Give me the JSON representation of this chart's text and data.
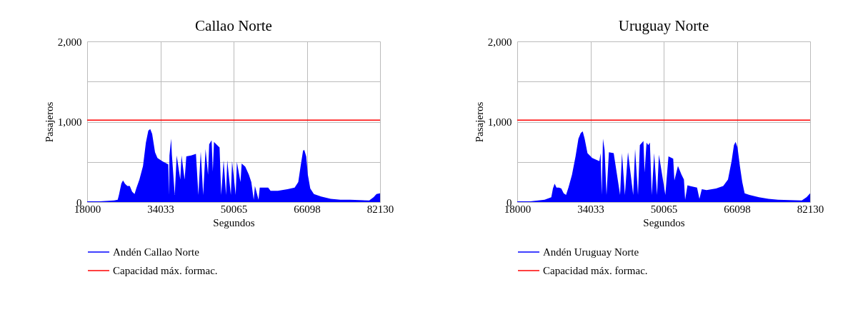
{
  "chart_data": [
    {
      "type": "area",
      "title": "Callao Norte",
      "xlabel": "Segundos",
      "ylabel": "Pasajeros",
      "xlim": [
        18000,
        82130
      ],
      "xticks": [
        18000,
        34033,
        50065,
        66098,
        82130
      ],
      "ylim": [
        0,
        2000
      ],
      "yticks": [
        0,
        {
          "value": 500,
          "label": null
        },
        {
          "value": 1000,
          "label": "1,000"
        },
        {
          "value": 1500,
          "label": null
        },
        {
          "value": 2000,
          "label": "2,000"
        }
      ],
      "grid": true,
      "legend": "bottom",
      "series": [
        {
          "name": "Andén Callao Norte",
          "color": "#0000ff",
          "x": [
            18000,
            20740,
            23900,
            24690,
            24960,
            25480,
            25850,
            26270,
            26800,
            27330,
            27850,
            28380,
            28750,
            29440,
            30230,
            30860,
            31390,
            31810,
            32230,
            32860,
            33390,
            34440,
            35760,
            35920,
            36020,
            36390,
            36550,
            37180,
            37600,
            38390,
            38660,
            39340,
            39710,
            40770,
            41820,
            42350,
            42870,
            43400,
            43930,
            44460,
            44720,
            45250,
            45510,
            45770,
            46460,
            46990,
            47350,
            47880,
            48410,
            48670,
            49460,
            49730,
            50520,
            50780,
            51570,
            51830,
            52620,
            53410,
            53940,
            54470,
            54730,
            55520,
            55790,
            57630,
            58160,
            59740,
            61850,
            63430,
            64220,
            64740,
            65270,
            65540,
            65960,
            66320,
            66850,
            67640,
            69220,
            71330,
            73440,
            75550,
            79760,
            80710,
            81350,
            82130
          ],
          "values": [
            10,
            10,
            20,
            30,
            90,
            230,
            270,
            230,
            200,
            200,
            130,
            100,
            170,
            280,
            450,
            740,
            890,
            910,
            850,
            620,
            550,
            510,
            470,
            90,
            580,
            790,
            590,
            90,
            580,
            280,
            580,
            280,
            570,
            580,
            600,
            90,
            630,
            90,
            660,
            340,
            720,
            770,
            380,
            750,
            710,
            680,
            90,
            520,
            90,
            520,
            90,
            510,
            90,
            500,
            250,
            480,
            440,
            340,
            250,
            30,
            200,
            30,
            180,
            180,
            140,
            140,
            160,
            180,
            250,
            450,
            640,
            650,
            570,
            340,
            170,
            100,
            70,
            40,
            30,
            30,
            20,
            60,
            100,
            110
          ]
        },
        {
          "name": "Capacidad máx. formac.",
          "type": "line",
          "color": "#ff0000",
          "x": [
            18000,
            82130
          ],
          "values": [
            1020,
            1020
          ]
        }
      ]
    },
    {
      "type": "area",
      "title": "Uruguay Norte",
      "xlabel": "Segundos",
      "ylabel": "Pasajeros",
      "xlim": [
        18000,
        82130
      ],
      "xticks": [
        18000,
        34033,
        50065,
        66098,
        82130
      ],
      "ylim": [
        0,
        2000
      ],
      "yticks": [
        0,
        {
          "value": 500,
          "label": null
        },
        {
          "value": 1000,
          "label": "1,000"
        },
        {
          "value": 1500,
          "label": null
        },
        {
          "value": 2000,
          "label": "2,000"
        }
      ],
      "grid": true,
      "legend": "bottom",
      "series": [
        {
          "name": "Andén Uruguay Norte",
          "color": "#0000ff",
          "x": [
            18000,
            20870,
            24000,
            25460,
            25820,
            26190,
            26600,
            27120,
            27650,
            28170,
            28690,
            29210,
            29990,
            30770,
            31400,
            31920,
            32340,
            32760,
            33380,
            34420,
            35990,
            36250,
            36510,
            36770,
            37130,
            37550,
            38070,
            39120,
            40520,
            40940,
            41570,
            42250,
            43390,
            43810,
            44440,
            44850,
            45630,
            45890,
            46310,
            46680,
            47040,
            47460,
            47980,
            48610,
            49020,
            50430,
            51110,
            52150,
            52410,
            53190,
            53980,
            54500,
            54760,
            55280,
            55800,
            57370,
            57890,
            58410,
            59450,
            61540,
            63100,
            64140,
            64930,
            65450,
            65810,
            66230,
            66750,
            67270,
            67790,
            68840,
            70920,
            73010,
            75090,
            80300,
            81340,
            82130
          ],
          "values": [
            10,
            10,
            30,
            60,
            170,
            230,
            180,
            180,
            170,
            110,
            90,
            180,
            340,
            570,
            790,
            860,
            880,
            790,
            610,
            550,
            510,
            610,
            90,
            790,
            650,
            90,
            620,
            610,
            90,
            610,
            90,
            620,
            90,
            660,
            90,
            710,
            760,
            370,
            740,
            710,
            740,
            90,
            610,
            90,
            590,
            90,
            570,
            540,
            270,
            450,
            340,
            280,
            30,
            210,
            200,
            180,
            40,
            160,
            150,
            170,
            200,
            280,
            510,
            710,
            750,
            680,
            450,
            250,
            110,
            90,
            60,
            40,
            30,
            20,
            60,
            110
          ]
        },
        {
          "name": "Capacidad máx. formac.",
          "type": "line",
          "color": "#ff0000",
          "x": [
            18000,
            82130
          ],
          "values": [
            1020,
            1020
          ]
        }
      ]
    }
  ]
}
